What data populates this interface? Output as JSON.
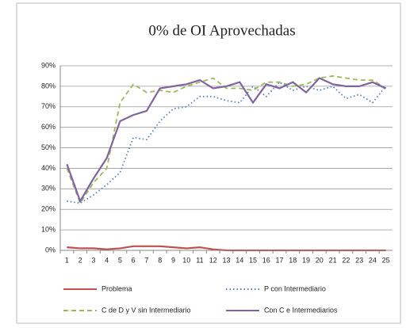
{
  "chart_data": {
    "type": "line",
    "title": "0% de OI Aprovechadas",
    "categories": [
      "1",
      "2",
      "3",
      "4",
      "5",
      "6",
      "7",
      "8",
      "9",
      "10",
      "11",
      "12",
      "13",
      "14",
      "15",
      "16",
      "17",
      "18",
      "19",
      "20",
      "21",
      "22",
      "23",
      "24",
      "25"
    ],
    "series": [
      {
        "name": "Problema",
        "color": "#c0504d",
        "dash": "solid",
        "values": [
          1.5,
          1,
          1,
          0.5,
          1,
          2,
          2,
          2,
          1.5,
          1,
          1.5,
          0.5,
          0,
          0,
          0,
          0,
          0,
          0,
          0,
          0,
          0,
          0,
          0,
          0,
          0
        ]
      },
      {
        "name": "P con Intermediario",
        "color": "#4f81bd",
        "dash": "dotted",
        "values": [
          24,
          23,
          27,
          32,
          38,
          55,
          54,
          63,
          69,
          70,
          75,
          75,
          73,
          72,
          80,
          75,
          82,
          78,
          80,
          78,
          80,
          74,
          76,
          72,
          80
        ]
      },
      {
        "name": "C de D y V sin Intermediario",
        "color": "#9bbb59",
        "dash": "dashed",
        "values": [
          40,
          23,
          33,
          40,
          72,
          81,
          77,
          78,
          77,
          80,
          82,
          84,
          79,
          79,
          78,
          82,
          82,
          80,
          81,
          84,
          85,
          84,
          83,
          83,
          79
        ]
      },
      {
        "name": "Con C e Intermediarios",
        "color": "#8064a2",
        "dash": "solid",
        "values": [
          42,
          24,
          35,
          45,
          63,
          66,
          68,
          79,
          80,
          81,
          83,
          79,
          80,
          82,
          72,
          81,
          79,
          82,
          77,
          84,
          81,
          80,
          80,
          82,
          79
        ]
      }
    ],
    "ylim": [
      0,
      90
    ],
    "yticks": [
      {
        "value": 0,
        "label": "0%"
      },
      {
        "value": 10,
        "label": "10%"
      },
      {
        "value": 20,
        "label": "20%"
      },
      {
        "value": 30,
        "label": "30%"
      },
      {
        "value": 40,
        "label": "40%"
      },
      {
        "value": 50,
        "label": "50%"
      },
      {
        "value": 60,
        "label": "60%"
      },
      {
        "value": 70,
        "label": "70%"
      },
      {
        "value": 80,
        "label": "80%"
      },
      {
        "value": 90,
        "label": "90%"
      }
    ],
    "grid": true
  }
}
